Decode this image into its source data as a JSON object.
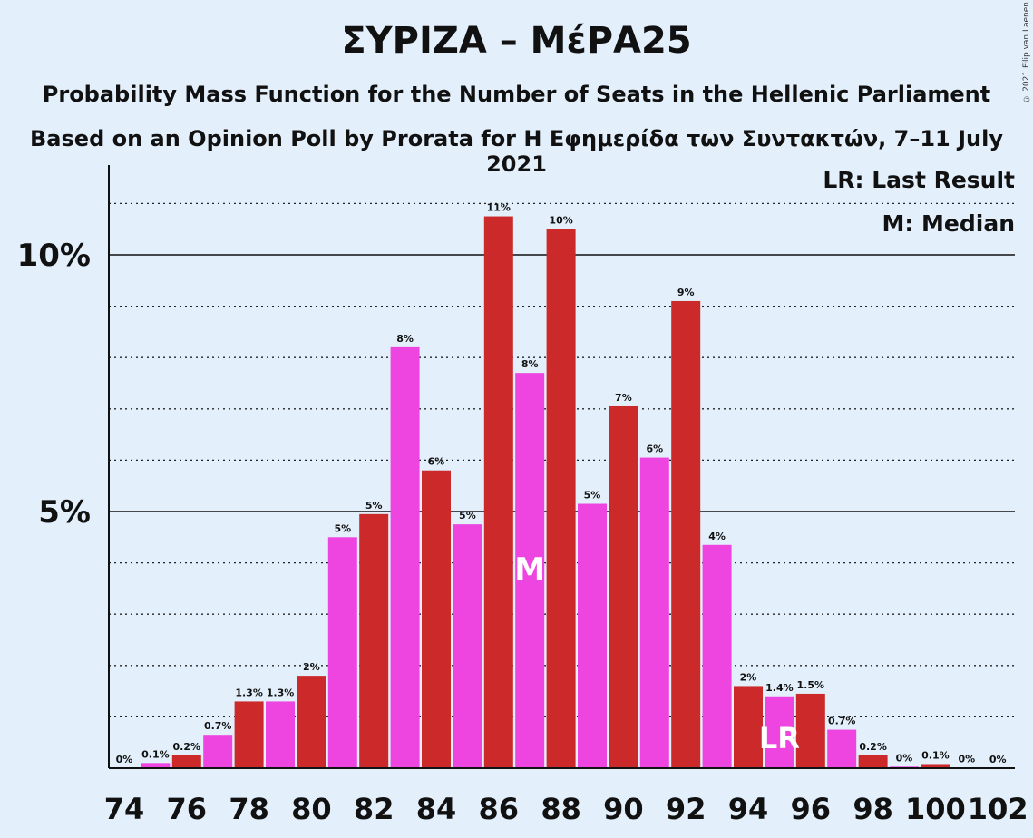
{
  "title": "ΣΥΡΙΖΑ – ΜέΡΑ25",
  "subtitle1": "Probability Mass Function for the Number of Seats in the Hellenic Parliament",
  "subtitle2": "Based on an Opinion Poll by Prorata for Η Εφημερίδα των Συντακτών, 7–11 July 2021",
  "copyright": "© 2021 Filip van Laenen",
  "legend": {
    "last_result": "LR: Last Result",
    "median": "M: Median"
  },
  "colors": {
    "background": "#e3f0fc",
    "bar_red": "#cc2a2a",
    "bar_magenta": "#ee44e0"
  },
  "chart_data": {
    "type": "bar",
    "x": [
      74,
      75,
      76,
      77,
      78,
      79,
      80,
      81,
      82,
      83,
      84,
      85,
      86,
      87,
      88,
      89,
      90,
      91,
      92,
      93,
      94,
      95,
      96,
      97,
      98,
      99,
      100,
      101,
      102
    ],
    "values": [
      0,
      0.1,
      0.25,
      0.65,
      1.3,
      1.3,
      1.8,
      4.5,
      4.95,
      8.2,
      5.8,
      4.75,
      10.75,
      7.7,
      10.5,
      5.15,
      7.05,
      6.05,
      9.1,
      4.35,
      1.6,
      1.4,
      1.45,
      0.75,
      0.25,
      0.03,
      0.08,
      0.01,
      0
    ],
    "labels": [
      "0%",
      "0.1%",
      "0.2%",
      "0.7%",
      "1.3%",
      "1.3%",
      "2%",
      "5%",
      "5%",
      "8%",
      "6%",
      "5%",
      "11%",
      "8%",
      "10%",
      "5%",
      "7%",
      "6%",
      "9%",
      "4%",
      "2%",
      "1.4%",
      "1.5%",
      "0.7%",
      "0.2%",
      "0%",
      "0.1%",
      "0%",
      "0%"
    ],
    "x_tick_labels": [
      "74",
      "76",
      "78",
      "80",
      "82",
      "84",
      "86",
      "88",
      "90",
      "92",
      "94",
      "96",
      "98",
      "100",
      "102"
    ],
    "y_tick_labels": [
      "5%",
      "10%"
    ],
    "y_ticks": [
      5,
      10
    ],
    "ylim": [
      0,
      11.7
    ],
    "median_seat": 87,
    "median_marker": "M",
    "last_result_seat": 95,
    "last_result_marker": "LR",
    "grid": true
  }
}
